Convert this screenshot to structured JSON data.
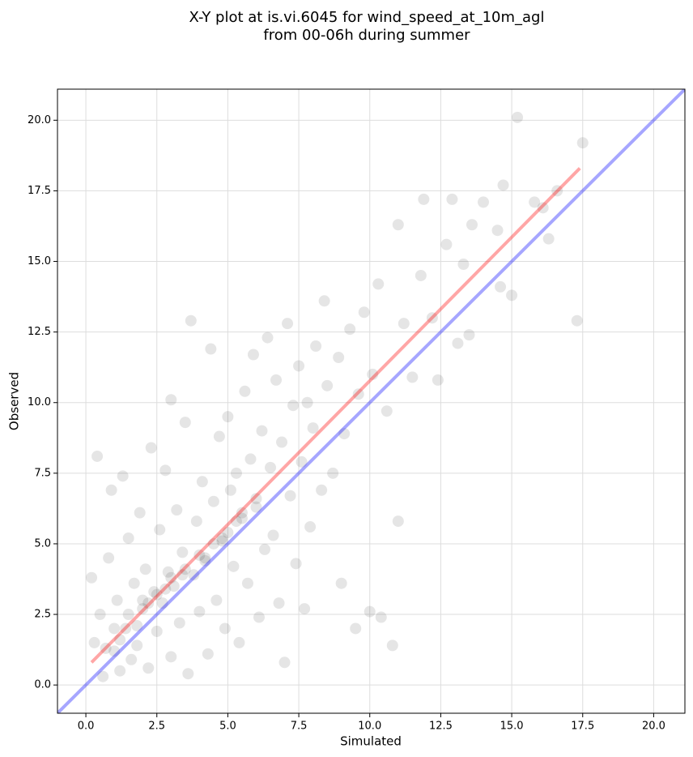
{
  "chart_data": {
    "type": "scatter",
    "title": [
      "X-Y plot at is.vi.6045 for wind_speed_at_10m_agl",
      "from 00-06h during summer"
    ],
    "x_label": "Simulated",
    "y_label": "Observed",
    "xlim": [
      -1.0,
      21.1
    ],
    "ylim": [
      -1.0,
      21.1
    ],
    "xticks": [
      {
        "value": 0,
        "label": "0.0"
      },
      2.5,
      {
        "value": 5,
        "label": "5.0"
      },
      7.5,
      {
        "value": 10,
        "label": "10.0"
      },
      12.5,
      {
        "value": 15,
        "label": "15.0"
      },
      17.5,
      {
        "value": 20,
        "label": "20.0"
      }
    ],
    "yticks": [
      {
        "value": 0,
        "label": "0.0"
      },
      2.5,
      {
        "value": 5,
        "label": "5.0"
      },
      7.5,
      {
        "value": 10,
        "label": "10.0"
      },
      12.5,
      {
        "value": 15,
        "label": "15.0"
      },
      17.5,
      {
        "value": 20,
        "label": "20.0"
      }
    ],
    "grid": true,
    "point_color": "#000000",
    "x": [
      0.2,
      0.4,
      0.3,
      0.5,
      0.6,
      0.8,
      0.9,
      1.0,
      1.1,
      1.2,
      1.3,
      1.4,
      1.5,
      1.6,
      1.7,
      1.8,
      1.9,
      2.0,
      2.1,
      2.2,
      2.3,
      2.4,
      2.5,
      2.6,
      2.7,
      2.8,
      2.9,
      3.0,
      3.0,
      3.1,
      3.2,
      3.3,
      3.4,
      3.5,
      3.6,
      3.7,
      3.8,
      3.9,
      4.0,
      4.1,
      4.2,
      4.3,
      4.4,
      4.5,
      4.6,
      4.7,
      4.8,
      4.9,
      5.0,
      5.1,
      5.2,
      5.3,
      5.4,
      5.5,
      5.6,
      5.7,
      5.8,
      5.9,
      6.0,
      6.1,
      6.2,
      6.3,
      6.4,
      6.5,
      6.6,
      6.7,
      6.8,
      6.9,
      7.0,
      7.1,
      7.2,
      7.3,
      7.4,
      7.5,
      7.6,
      7.7,
      7.8,
      7.9,
      8.0,
      8.1,
      8.3,
      8.4,
      8.5,
      8.7,
      8.9,
      9.0,
      9.1,
      9.3,
      9.5,
      9.6,
      9.8,
      10.0,
      10.1,
      10.3,
      10.4,
      10.6,
      10.8,
      11.0,
      11.0,
      11.2,
      11.5,
      11.8,
      11.9,
      12.2,
      12.4,
      12.7,
      12.9,
      13.1,
      13.3,
      13.5,
      13.6,
      14.0,
      14.5,
      14.7,
      14.6,
      15.0,
      15.2,
      15.8,
      16.1,
      16.3,
      16.6,
      17.3,
      17.5,
      1.0,
      1.5,
      2.0,
      2.5,
      3.0,
      3.5,
      4.0,
      4.5,
      5.0,
      5.5,
      6.0,
      2.2,
      2.8,
      3.4,
      4.2,
      4.8,
      5.3,
      1.2,
      1.8,
      0.7
    ],
    "y": [
      3.8,
      8.1,
      1.5,
      2.5,
      0.3,
      4.5,
      6.9,
      1.2,
      3.0,
      0.5,
      7.4,
      2.0,
      5.2,
      0.9,
      3.6,
      1.4,
      6.1,
      2.7,
      4.1,
      0.6,
      8.4,
      3.3,
      1.9,
      5.5,
      2.9,
      7.6,
      4.0,
      10.1,
      1.0,
      3.5,
      6.2,
      2.2,
      4.7,
      9.3,
      0.4,
      12.9,
      3.9,
      5.8,
      2.6,
      7.2,
      4.4,
      1.1,
      11.9,
      6.5,
      3.0,
      8.8,
      5.1,
      2.0,
      9.5,
      6.9,
      4.2,
      7.5,
      1.5,
      5.9,
      10.4,
      3.6,
      8.0,
      11.7,
      6.3,
      2.4,
      9.0,
      4.8,
      12.3,
      7.7,
      5.3,
      10.8,
      2.9,
      8.6,
      0.8,
      12.8,
      6.7,
      9.9,
      4.3,
      11.3,
      7.9,
      2.7,
      10.0,
      5.6,
      9.1,
      12.0,
      6.9,
      13.6,
      10.6,
      7.5,
      11.6,
      3.6,
      8.9,
      12.6,
      2.0,
      10.3,
      13.2,
      2.6,
      11.0,
      14.2,
      2.4,
      9.7,
      1.4,
      5.8,
      16.3,
      12.8,
      10.9,
      14.5,
      17.2,
      13.0,
      10.8,
      15.6,
      17.2,
      12.1,
      14.9,
      12.4,
      16.3,
      17.1,
      16.1,
      17.7,
      14.1,
      13.8,
      20.1,
      17.1,
      16.9,
      15.8,
      17.5,
      12.9,
      19.2,
      2.0,
      2.5,
      3.0,
      3.2,
      3.8,
      4.1,
      4.6,
      5.0,
      5.4,
      6.1,
      6.6,
      2.9,
      3.4,
      3.9,
      4.5,
      5.2,
      5.8,
      1.6,
      2.1,
      1.3
    ],
    "lines": [
      {
        "color": "#0000ff",
        "x": [
          -1.0,
          21.1
        ],
        "y": [
          -1.0,
          21.1
        ]
      },
      {
        "color": "#ff0000",
        "x": [
          0.2,
          17.4
        ],
        "y": [
          0.8,
          18.3
        ]
      }
    ]
  }
}
